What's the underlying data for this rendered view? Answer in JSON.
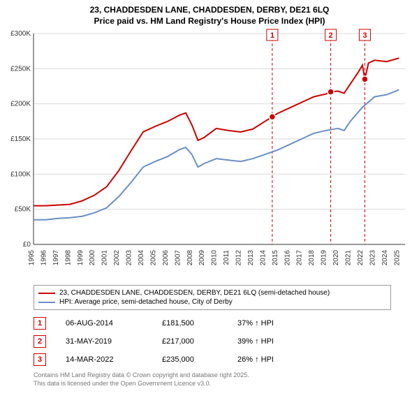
{
  "title": {
    "line1": "23, CHADDESDEN LANE, CHADDESDEN, DERBY, DE21 6LQ",
    "line2": "Price paid vs. HM Land Registry's House Price Index (HPI)"
  },
  "chart": {
    "type": "line",
    "background_color": "#ffffff",
    "grid_color": "#d9d9d9",
    "axis_color": "#333333",
    "title_fontsize": 12,
    "tick_fontsize": 10,
    "x": {
      "min": 1995,
      "max": 2025.5,
      "ticks": [
        1995,
        1996,
        1997,
        1998,
        1999,
        2000,
        2001,
        2002,
        2003,
        2004,
        2005,
        2006,
        2007,
        2008,
        2009,
        2010,
        2011,
        2012,
        2013,
        2014,
        2015,
        2016,
        2017,
        2018,
        2019,
        2020,
        2021,
        2022,
        2023,
        2024,
        2025
      ],
      "tick_rotation": -90
    },
    "y": {
      "min": 0,
      "max": 300000,
      "ticks": [
        0,
        50000,
        100000,
        150000,
        200000,
        250000,
        300000
      ],
      "tick_prefix": "£",
      "tick_suffix": "K",
      "tick_divisor": 1000
    },
    "series": [
      {
        "name": "red",
        "label": "23, CHADDESDEN LANE, CHADDESDEN, DERBY, DE21 6LQ (semi-detached house)",
        "color": "#cc0000",
        "line_width": 2,
        "points": [
          [
            1995,
            55000
          ],
          [
            1996,
            55000
          ],
          [
            1997,
            56000
          ],
          [
            1998,
            57000
          ],
          [
            1999,
            62000
          ],
          [
            2000,
            70000
          ],
          [
            2001,
            82000
          ],
          [
            2002,
            105000
          ],
          [
            2003,
            133000
          ],
          [
            2004,
            160000
          ],
          [
            2005,
            168000
          ],
          [
            2006,
            175000
          ],
          [
            2007,
            184000
          ],
          [
            2007.5,
            187000
          ],
          [
            2008,
            170000
          ],
          [
            2008.5,
            148000
          ],
          [
            2009,
            152000
          ],
          [
            2010,
            165000
          ],
          [
            2011,
            162000
          ],
          [
            2012,
            160000
          ],
          [
            2013,
            164000
          ],
          [
            2014,
            175000
          ],
          [
            2014.6,
            181500
          ],
          [
            2015,
            186000
          ],
          [
            2016,
            194000
          ],
          [
            2017,
            202000
          ],
          [
            2018,
            210000
          ],
          [
            2019,
            214000
          ],
          [
            2019.4,
            217000
          ],
          [
            2020,
            218000
          ],
          [
            2020.5,
            215000
          ],
          [
            2021,
            228000
          ],
          [
            2021.7,
            246000
          ],
          [
            2022,
            255000
          ],
          [
            2022.2,
            235000
          ],
          [
            2022.5,
            258000
          ],
          [
            2023,
            262000
          ],
          [
            2024,
            260000
          ],
          [
            2025,
            265000
          ]
        ]
      },
      {
        "name": "blue",
        "label": "HPI: Average price, semi-detached house, City of Derby",
        "color": "#6a8fc4",
        "line_width": 2,
        "points": [
          [
            1995,
            35000
          ],
          [
            1996,
            35000
          ],
          [
            1997,
            37000
          ],
          [
            1998,
            38000
          ],
          [
            1999,
            40000
          ],
          [
            2000,
            45000
          ],
          [
            2001,
            52000
          ],
          [
            2002,
            68000
          ],
          [
            2003,
            88000
          ],
          [
            2004,
            110000
          ],
          [
            2005,
            118000
          ],
          [
            2006,
            125000
          ],
          [
            2007,
            135000
          ],
          [
            2007.5,
            138000
          ],
          [
            2008,
            128000
          ],
          [
            2008.5,
            110000
          ],
          [
            2009,
            115000
          ],
          [
            2010,
            122000
          ],
          [
            2011,
            120000
          ],
          [
            2012,
            118000
          ],
          [
            2013,
            122000
          ],
          [
            2014,
            128000
          ],
          [
            2015,
            134000
          ],
          [
            2016,
            142000
          ],
          [
            2017,
            150000
          ],
          [
            2018,
            158000
          ],
          [
            2019,
            162000
          ],
          [
            2020,
            165000
          ],
          [
            2020.5,
            162000
          ],
          [
            2021,
            175000
          ],
          [
            2022,
            195000
          ],
          [
            2023,
            210000
          ],
          [
            2024,
            213000
          ],
          [
            2025,
            220000
          ]
        ]
      }
    ],
    "markers": [
      {
        "n": "1",
        "x": 2014.6,
        "y": 181500
      },
      {
        "n": "2",
        "x": 2019.4,
        "y": 217000
      },
      {
        "n": "3",
        "x": 2022.2,
        "y": 235000
      }
    ],
    "marker_line_color": "#cc0000",
    "marker_line_dash": "4,3",
    "marker_dot_fill": "#cc0000",
    "marker_dot_stroke": "#ffffff",
    "marker_badge_border": "#cc0000",
    "marker_badge_text": "#cc0000"
  },
  "legend": {
    "red": "23, CHADDESDEN LANE, CHADDESDEN, DERBY, DE21 6LQ (semi-detached house)",
    "blue": "HPI: Average price, semi-detached house, City of Derby"
  },
  "markers_table": [
    {
      "n": "1",
      "date": "06-AUG-2014",
      "price": "£181,500",
      "pct": "37% ↑ HPI"
    },
    {
      "n": "2",
      "date": "31-MAY-2019",
      "price": "£217,000",
      "pct": "39% ↑ HPI"
    },
    {
      "n": "3",
      "date": "14-MAR-2022",
      "price": "£235,000",
      "pct": "26% ↑ HPI"
    }
  ],
  "footer": {
    "line1": "Contains HM Land Registry data © Crown copyright and database right 2025.",
    "line2": "This data is licensed under the Open Government Licence v3.0."
  }
}
